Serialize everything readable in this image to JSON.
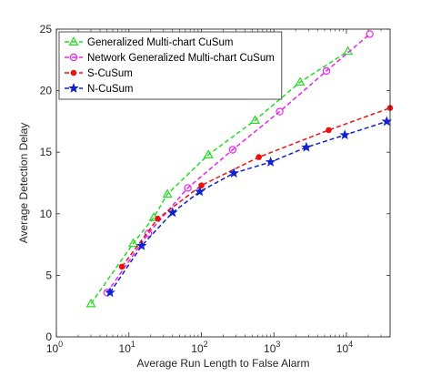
{
  "chart_data": {
    "type": "line",
    "xlabel": "Average Run Length to False Alarm",
    "ylabel": "Average Detection Delay",
    "xscale": "log",
    "xlim": [
      1,
      40000
    ],
    "ylim": [
      0,
      25
    ],
    "xticks": [
      {
        "value": 1,
        "base": "10",
        "exp": "0"
      },
      {
        "value": 10,
        "base": "10",
        "exp": "1"
      },
      {
        "value": 100,
        "base": "10",
        "exp": "2"
      },
      {
        "value": 1000,
        "base": "10",
        "exp": "3"
      },
      {
        "value": 10000,
        "base": "10",
        "exp": "4"
      }
    ],
    "yticks": [
      {
        "value": 0,
        "label": "0"
      },
      {
        "value": 5,
        "label": "5"
      },
      {
        "value": 10,
        "label": "10"
      },
      {
        "value": 15,
        "label": "15"
      },
      {
        "value": 20,
        "label": "20"
      },
      {
        "value": 25,
        "label": "25"
      }
    ],
    "grid": false,
    "legend": "top-left",
    "series": [
      {
        "name": "Generalized Multi-chart CuSum",
        "color": "#22dd22",
        "marker": "triangle",
        "points": [
          [
            3,
            2.7
          ],
          [
            11.5,
            7.6
          ],
          [
            22,
            9.7
          ],
          [
            34,
            11.6
          ],
          [
            125,
            14.8
          ],
          [
            550,
            17.6
          ],
          [
            2300,
            20.7
          ],
          [
            10500,
            23.2
          ]
        ]
      },
      {
        "name": "Network Generalized Multi-chart CuSum",
        "color": "#ee22ee",
        "marker": "circle",
        "points": [
          [
            5,
            3.6
          ],
          [
            18.5,
            8.4
          ],
          [
            65,
            12.1
          ],
          [
            270,
            15.2
          ],
          [
            1200,
            18.3
          ],
          [
            5300,
            21.6
          ],
          [
            21000,
            24.6
          ]
        ]
      },
      {
        "name": "S-CuSum",
        "color": "#ee1111",
        "marker": "dot",
        "points": [
          [
            8,
            5.7
          ],
          [
            25,
            9.6
          ],
          [
            100,
            12.3
          ],
          [
            620,
            14.6
          ],
          [
            5700,
            16.8
          ],
          [
            40000,
            18.6
          ]
        ]
      },
      {
        "name": "N-CuSum",
        "color": "#1122cc",
        "marker": "star",
        "points": [
          [
            5.5,
            3.6
          ],
          [
            15,
            7.4
          ],
          [
            40,
            10.1
          ],
          [
            95,
            11.8
          ],
          [
            280,
            13.3
          ],
          [
            900,
            14.2
          ],
          [
            2800,
            15.4
          ],
          [
            9500,
            16.4
          ],
          [
            36000,
            17.5
          ]
        ]
      }
    ]
  }
}
